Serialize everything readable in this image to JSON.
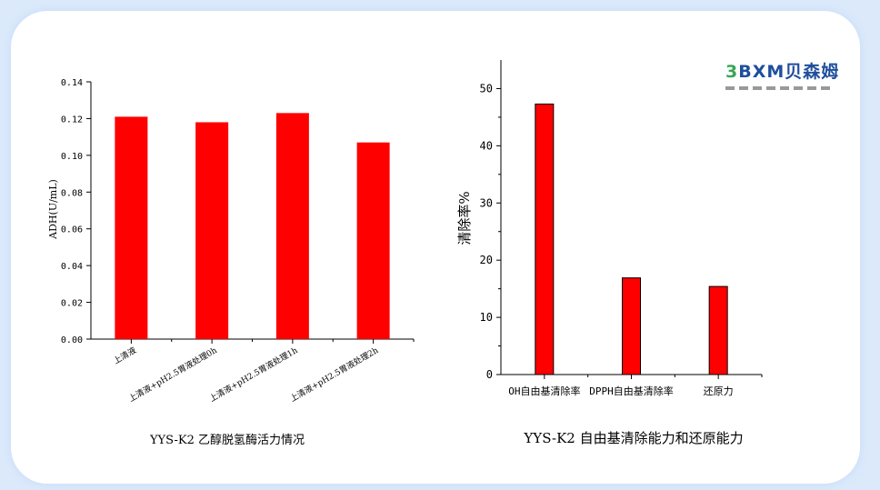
{
  "logo": {
    "text_prefix": "3",
    "text": "BXM贝森姆",
    "brand_color": "#1f4e9c",
    "accent_color": "#3aa657"
  },
  "chart_data": [
    {
      "type": "bar",
      "title": "YYS-K2 乙醇脱氢酶活力情况",
      "ylabel": "ADH(U/mL)",
      "xlabel": "",
      "categories": [
        "上清液",
        "上清液+pH2.5胃液处理0h",
        "上清液+pH2.5胃液处理1h",
        "上清液+pH2.5胃液处理2h"
      ],
      "values": [
        0.121,
        0.118,
        0.123,
        0.107
      ],
      "ylim": [
        0,
        0.14
      ],
      "yticks": [
        "0.00",
        "0.02",
        "0.04",
        "0.06",
        "0.08",
        "0.10",
        "0.12",
        "0.14"
      ],
      "bar_color": "#ff0000",
      "grid": false
    },
    {
      "type": "bar",
      "title": "YYS-K2 自由基清除能力和还原能力",
      "ylabel": "清除率%",
      "xlabel": "",
      "categories": [
        "OH自由基清除率",
        "DPPH自由基清除率",
        "还原力"
      ],
      "values": [
        47.3,
        16.9,
        15.4
      ],
      "ylim": [
        0,
        55
      ],
      "yticks": [
        "0",
        "10",
        "20",
        "30",
        "40",
        "50"
      ],
      "bar_color": "#ff0000",
      "grid": false
    }
  ]
}
